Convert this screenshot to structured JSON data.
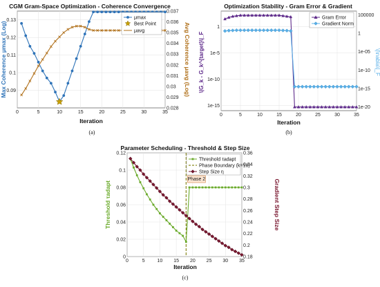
{
  "colors": {
    "blue": "#2e73b8",
    "orange_brown": "#b0701a",
    "gold": "#c8a000",
    "purple": "#5e2a8a",
    "light_blue": "#5ab0e8",
    "green": "#6aaa2a",
    "dark_red": "#7a1830",
    "phase_line": "#8a8a20"
  },
  "captions": [
    "(a)",
    "(b)",
    "(c)"
  ],
  "chart_data": [
    {
      "type": "line",
      "title": "CGM Gram-Space Optimization - Coherence Convergence",
      "xlabel": "Iteration",
      "ylabel": "Max Coherence μmax (Log)",
      "ylabel2": "Avg Coherence μavg (Log)",
      "xlim": [
        0,
        35
      ],
      "ylim": [
        0.08,
        0.135
      ],
      "ylim2": [
        0.028,
        0.037
      ],
      "xticks": [
        0,
        5,
        10,
        15,
        20,
        25,
        30,
        35
      ],
      "yticks": [
        0.09,
        0.1,
        0.11,
        0.12,
        0.13
      ],
      "yticks2": [
        0.028,
        0.029,
        0.03,
        0.031,
        0.032,
        0.033,
        0.034,
        0.035,
        0.036,
        0.037
      ],
      "legend": [
        "μmax",
        "Best Point",
        "μavg"
      ],
      "legend_position": "top-right",
      "series": [
        {
          "name": "μmax",
          "axis": "left",
          "x": [
            1,
            2,
            3,
            4,
            5,
            6,
            7,
            8,
            9,
            10,
            11,
            12,
            13,
            14,
            15,
            16,
            17,
            18,
            19,
            20,
            21,
            22,
            23,
            24,
            25,
            26,
            27,
            28,
            29,
            30,
            31,
            32,
            33,
            34,
            35
          ],
          "values": [
            0.128,
            0.121,
            0.115,
            0.111,
            0.106,
            0.101,
            0.097,
            0.094,
            0.089,
            0.0835,
            0.087,
            0.094,
            0.101,
            0.108,
            0.115,
            0.122,
            0.129,
            0.1345,
            0.1345,
            0.1345,
            0.1345,
            0.1345,
            0.1345,
            0.1345,
            0.1345,
            0.1345,
            0.1345,
            0.1345,
            0.1345,
            0.1345,
            0.1345,
            0.1345,
            0.1345,
            0.1345,
            0.1345
          ]
        },
        {
          "name": "μavg",
          "axis": "right",
          "x": [
            1,
            2,
            3,
            4,
            5,
            6,
            7,
            8,
            9,
            10,
            11,
            12,
            13,
            14,
            15,
            16,
            17,
            18,
            19,
            20,
            21,
            22,
            23,
            24,
            25,
            26,
            27,
            28,
            29,
            30,
            31,
            32,
            33,
            34,
            35
          ],
          "values": [
            0.0292,
            0.0298,
            0.0305,
            0.0312,
            0.0319,
            0.0325,
            0.0331,
            0.0337,
            0.0342,
            0.0346,
            0.035,
            0.0353,
            0.0355,
            0.0356,
            0.0356,
            0.0355,
            0.0353,
            0.0352,
            0.0352,
            0.0352,
            0.0352,
            0.0352,
            0.0352,
            0.0352,
            0.0352,
            0.0352,
            0.0352,
            0.0352,
            0.0352,
            0.0352,
            0.0352,
            0.0352,
            0.0352,
            0.0352,
            0.0352
          ]
        }
      ],
      "best_point": {
        "name": "Best Point",
        "x": 10,
        "y": 0.0835
      }
    },
    {
      "type": "line",
      "title": "Optimization Stability - Gram Error & Gradient",
      "xlabel": "Iteration",
      "ylabel": "\\|G_k - G_k^{target}\\|_F",
      "ylabel2": "\\|\\nabla\\|_F",
      "xlim": [
        0,
        35
      ],
      "xticks": [
        0,
        5,
        10,
        15,
        20,
        25,
        30,
        35
      ],
      "yticks": [
        "1e-15",
        "1e-10",
        "1e-5",
        "1"
      ],
      "yticks2": [
        "1e-20",
        "1e-15",
        "1e-10",
        "1e-05",
        "1",
        "100000"
      ],
      "legend": [
        "Gram Error",
        "Gradient Norm"
      ],
      "legend_position": "top-right",
      "log_y": true,
      "series": [
        {
          "name": "Gram Error",
          "axis": "left",
          "x": [
            1,
            2,
            3,
            4,
            5,
            6,
            7,
            8,
            9,
            10,
            11,
            12,
            13,
            14,
            15,
            16,
            17,
            18,
            19,
            20,
            21,
            22,
            23,
            24,
            25,
            26,
            27,
            28,
            29,
            30,
            31,
            32,
            33,
            34,
            35
          ],
          "log10_values": [
            1.5,
            1.8,
            2.0,
            2.1,
            2.2,
            2.2,
            2.2,
            2.2,
            2.2,
            2.2,
            2.2,
            2.2,
            2.2,
            2.2,
            2.2,
            2.1,
            2.0,
            1.9,
            -15.3,
            -15.3,
            -15.3,
            -15.3,
            -15.3,
            -15.3,
            -15.3,
            -15.3,
            -15.3,
            -15.3,
            -15.3,
            -15.3,
            -15.3,
            -15.3,
            -15.3,
            -15.3,
            -15.3
          ]
        },
        {
          "name": "Gradient Norm",
          "axis": "right",
          "x": [
            1,
            2,
            3,
            4,
            5,
            6,
            7,
            8,
            9,
            10,
            11,
            12,
            13,
            14,
            15,
            16,
            17,
            18,
            19,
            20,
            21,
            22,
            23,
            24,
            25,
            26,
            27,
            28,
            29,
            30,
            31,
            32,
            33,
            34,
            35
          ],
          "log10_values": [
            0.6,
            0.7,
            0.75,
            0.8,
            0.8,
            0.8,
            0.8,
            0.8,
            0.8,
            0.8,
            0.8,
            0.8,
            0.8,
            0.8,
            0.8,
            0.75,
            0.7,
            0.6,
            -14.5,
            -14.5,
            -14.5,
            -14.5,
            -14.5,
            -14.5,
            -14.5,
            -14.5,
            -14.5,
            -14.5,
            -14.5,
            -14.5,
            -14.5,
            -14.5,
            -14.5,
            -14.5,
            -14.5
          ]
        }
      ]
    },
    {
      "type": "line",
      "title": "Parameter Scheduling - Threshold & Step Size",
      "xlabel": "Iteration",
      "ylabel": "Threshold τadapt",
      "ylabel2": "Gradient Step Size",
      "xlim": [
        0,
        35
      ],
      "ylim": [
        0,
        0.12
      ],
      "ylim2": [
        0.18,
        0.36
      ],
      "xticks": [
        0,
        5,
        10,
        15,
        20,
        25,
        30,
        35
      ],
      "yticks": [
        0,
        0.02,
        0.04,
        0.06,
        0.08,
        0.1,
        0.12
      ],
      "yticks2": [
        0.18,
        0.2,
        0.22,
        0.24,
        0.26,
        0.28,
        0.3,
        0.32,
        0.34,
        0.36
      ],
      "legend": [
        "Threshold τadapt",
        "Phase Boundary (k=18)",
        "Step Size η"
      ],
      "legend_position": "top-right",
      "annotation": "Phase 2",
      "phase_boundary_x": 18,
      "series": [
        {
          "name": "Threshold τadapt",
          "axis": "left",
          "x": [
            1,
            2,
            3,
            4,
            5,
            6,
            7,
            8,
            9,
            10,
            11,
            12,
            13,
            14,
            15,
            16,
            17,
            18,
            19,
            20,
            21,
            22,
            23,
            24,
            25,
            26,
            27,
            28,
            29,
            30,
            31,
            32,
            33,
            34,
            35
          ],
          "values": [
            0.113,
            0.103,
            0.094,
            0.086,
            0.079,
            0.072,
            0.066,
            0.06,
            0.055,
            0.05,
            0.046,
            0.042,
            0.038,
            0.034,
            0.03,
            0.027,
            0.024,
            0.017,
            0.08,
            0.08,
            0.08,
            0.08,
            0.08,
            0.08,
            0.08,
            0.08,
            0.08,
            0.08,
            0.08,
            0.08,
            0.08,
            0.08,
            0.08,
            0.08,
            0.08
          ]
        },
        {
          "name": "Step Size η",
          "axis": "right",
          "x": [
            1,
            2,
            3,
            4,
            5,
            6,
            7,
            8,
            9,
            10,
            11,
            12,
            13,
            14,
            15,
            16,
            17,
            18,
            19,
            20,
            21,
            22,
            23,
            24,
            25,
            26,
            27,
            28,
            29,
            30,
            31,
            32,
            33,
            34,
            35
          ],
          "values": [
            0.35,
            0.343,
            0.336,
            0.33,
            0.323,
            0.317,
            0.311,
            0.305,
            0.299,
            0.293,
            0.287,
            0.282,
            0.276,
            0.271,
            0.266,
            0.261,
            0.256,
            0.251,
            0.246,
            0.241,
            0.236,
            0.232,
            0.227,
            0.223,
            0.219,
            0.215,
            0.211,
            0.207,
            0.203,
            0.199,
            0.196,
            0.192,
            0.189,
            0.186,
            0.183
          ]
        }
      ]
    }
  ]
}
